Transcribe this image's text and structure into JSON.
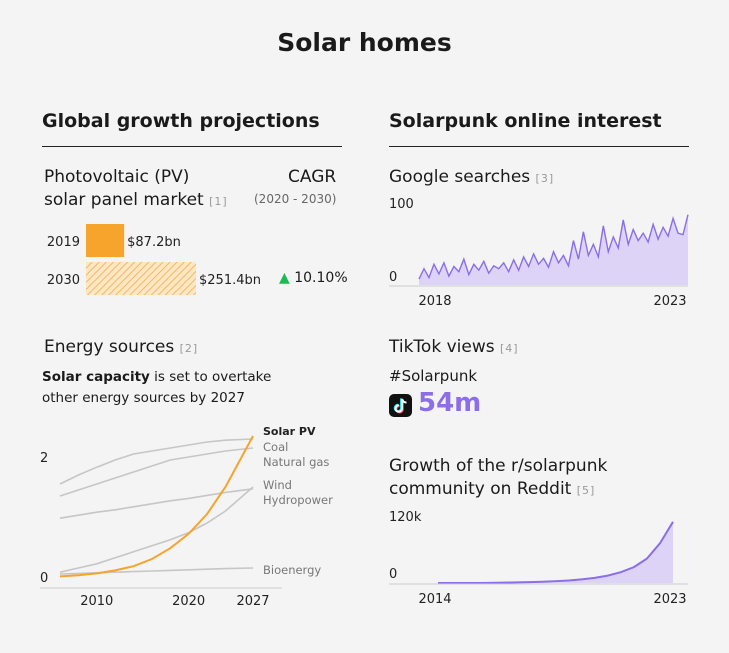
{
  "title": "Solar homes",
  "left": {
    "heading": "Global growth projections",
    "pv": {
      "label_line1": "Photovoltaic (PV)",
      "label_line2": "solar panel market",
      "ref": "[1]",
      "cagr_label": "CAGR",
      "cagr_period": "(2020 - 2030)",
      "cagr_value": "10.10%",
      "cagr_arrow": "▲"
    },
    "energy": {
      "heading": "Energy sources",
      "ref": "[2]",
      "desc_bold": "Solar capacity",
      "desc_rest_line1": " is set to overtake",
      "desc_line2": "other energy sources by 2027"
    }
  },
  "right": {
    "heading": "Solarpunk online interest",
    "google": {
      "heading": "Google searches",
      "ref": "[3]"
    },
    "tiktok": {
      "heading": "TikTok views",
      "ref": "[4]",
      "hashtag": "#Solarpunk",
      "views": "54m",
      "icon": "tiktok-logo-icon"
    },
    "reddit": {
      "heading_line1": "Growth of the r/solarpunk",
      "heading_line2": "community on Reddit",
      "ref": "[5]"
    }
  },
  "colors": {
    "orange": "#f6a42c",
    "purple": "#8b6ee8",
    "purple_fill": "#dcd3f7",
    "gray": "#c6c6c6",
    "green": "#1db954"
  },
  "chart_data": [
    {
      "type": "bar",
      "name": "pv-market",
      "categories": [
        "2019",
        "2030"
      ],
      "values": [
        87.2,
        251.4
      ],
      "value_labels": [
        "$87.2bn",
        "$251.4bn"
      ],
      "projected": [
        false,
        true
      ]
    },
    {
      "type": "line",
      "name": "energy-sources",
      "x": [
        2006,
        2008,
        2010,
        2012,
        2014,
        2016,
        2018,
        2020,
        2022,
        2024,
        2027
      ],
      "ylim": [
        0,
        2.4
      ],
      "yticks": [
        0,
        2
      ],
      "xticks": [
        2010,
        2020,
        2027
      ],
      "series": [
        {
          "name": "Solar PV",
          "values": [
            0.01,
            0.03,
            0.06,
            0.11,
            0.18,
            0.3,
            0.48,
            0.72,
            1.05,
            1.5,
            2.35
          ],
          "highlight": true
        },
        {
          "name": "Coal",
          "values": [
            1.55,
            1.7,
            1.83,
            1.95,
            2.05,
            2.1,
            2.15,
            2.2,
            2.25,
            2.28,
            2.3
          ]
        },
        {
          "name": "Natural gas",
          "values": [
            1.35,
            1.45,
            1.55,
            1.65,
            1.75,
            1.85,
            1.95,
            2.0,
            2.05,
            2.1,
            2.15
          ]
        },
        {
          "name": "Wind",
          "values": [
            0.08,
            0.15,
            0.22,
            0.32,
            0.42,
            0.52,
            0.62,
            0.74,
            0.9,
            1.1,
            1.5
          ]
        },
        {
          "name": "Hydropower",
          "values": [
            0.98,
            1.03,
            1.08,
            1.12,
            1.17,
            1.22,
            1.27,
            1.31,
            1.36,
            1.41,
            1.47
          ]
        },
        {
          "name": "Bioenergy",
          "values": [
            0.05,
            0.06,
            0.07,
            0.08,
            0.09,
            0.1,
            0.11,
            0.12,
            0.13,
            0.14,
            0.15
          ]
        }
      ]
    },
    {
      "type": "area",
      "name": "google-searches",
      "x": [
        2018.0,
        2018.1,
        2018.2,
        2018.3,
        2018.4,
        2018.5,
        2018.6,
        2018.7,
        2018.8,
        2018.9,
        2019.0,
        2019.1,
        2019.2,
        2019.3,
        2019.4,
        2019.5,
        2019.6,
        2019.7,
        2019.8,
        2019.9,
        2020.0,
        2020.1,
        2020.2,
        2020.3,
        2020.4,
        2020.5,
        2020.6,
        2020.7,
        2020.8,
        2020.9,
        2021.0,
        2021.1,
        2021.2,
        2021.3,
        2021.4,
        2021.5,
        2021.6,
        2021.7,
        2021.8,
        2021.9,
        2022.0,
        2022.1,
        2022.2,
        2022.3,
        2022.4,
        2022.5,
        2022.6,
        2022.7,
        2022.8,
        2022.9,
        2023.0,
        2023.1,
        2023.2,
        2023.3,
        2023.4
      ],
      "values": [
        8,
        22,
        10,
        28,
        15,
        30,
        12,
        25,
        18,
        35,
        14,
        28,
        20,
        32,
        16,
        26,
        22,
        30,
        18,
        34,
        20,
        38,
        25,
        42,
        28,
        36,
        24,
        45,
        30,
        40,
        26,
        60,
        35,
        72,
        40,
        55,
        38,
        80,
        45,
        65,
        50,
        88,
        55,
        75,
        60,
        70,
        58,
        82,
        62,
        78,
        66,
        90,
        70,
        68,
        95
      ],
      "ylim": [
        0,
        100
      ],
      "yticks": [
        0,
        100
      ],
      "xticks": [
        2018,
        2023
      ]
    },
    {
      "type": "area",
      "name": "reddit-growth",
      "x": [
        2014,
        2014.5,
        2015,
        2015.5,
        2016,
        2016.5,
        2017,
        2017.5,
        2018,
        2018.5,
        2019,
        2019.5,
        2020,
        2020.5,
        2021,
        2021.5,
        2022,
        2022.5,
        2023
      ],
      "values": [
        0,
        0,
        0,
        100,
        300,
        600,
        1000,
        1500,
        2200,
        3200,
        4500,
        6500,
        9000,
        13000,
        19000,
        28000,
        43000,
        70000,
        108000
      ],
      "ylim": [
        0,
        120000
      ],
      "yticks_labels": [
        "0",
        "120k"
      ],
      "xticks": [
        2014,
        2023
      ]
    }
  ]
}
